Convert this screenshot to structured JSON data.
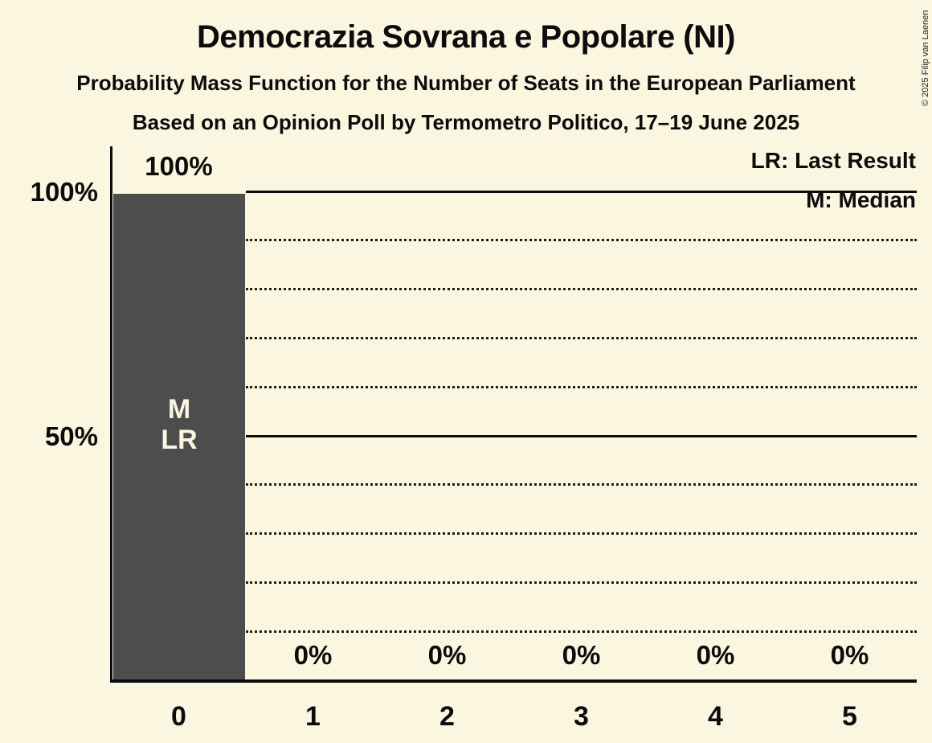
{
  "chart_data": {
    "type": "bar",
    "title": "Democrazia Sovrana e Popolare (NI)",
    "subtitle": "Probability Mass Function for the Number of Seats in the European Parliament",
    "subsubtitle": "Based on an Opinion Poll by Termometro Politico, 17–19 June 2025",
    "categories": [
      "0",
      "1",
      "2",
      "3",
      "4",
      "5"
    ],
    "values": [
      100,
      0,
      0,
      0,
      0,
      0
    ],
    "value_labels": [
      "100%",
      "0%",
      "0%",
      "0%",
      "0%",
      "0%"
    ],
    "bar_annotations": {
      "median": "M",
      "last_result": "LR"
    },
    "xlabel": "",
    "ylabel": "",
    "y_axis": {
      "range": [
        0,
        100
      ],
      "ticks": [
        {
          "label": "100%",
          "value": 100
        },
        {
          "label": "50%",
          "value": 50
        }
      ],
      "solid_gridlines": [
        100,
        50
      ],
      "dotted_gridlines": [
        90,
        80,
        70,
        60,
        40,
        30,
        20,
        10
      ]
    },
    "legend": {
      "lr": "LR: Last Result",
      "m": "M: Median"
    },
    "copyright": "© 2025 Filip van Laenen",
    "colors": {
      "background": "#fbf6df",
      "bar": "#4d4d4d",
      "text": "#0c0c0c",
      "bar_label_text": "#fbf6df"
    }
  }
}
